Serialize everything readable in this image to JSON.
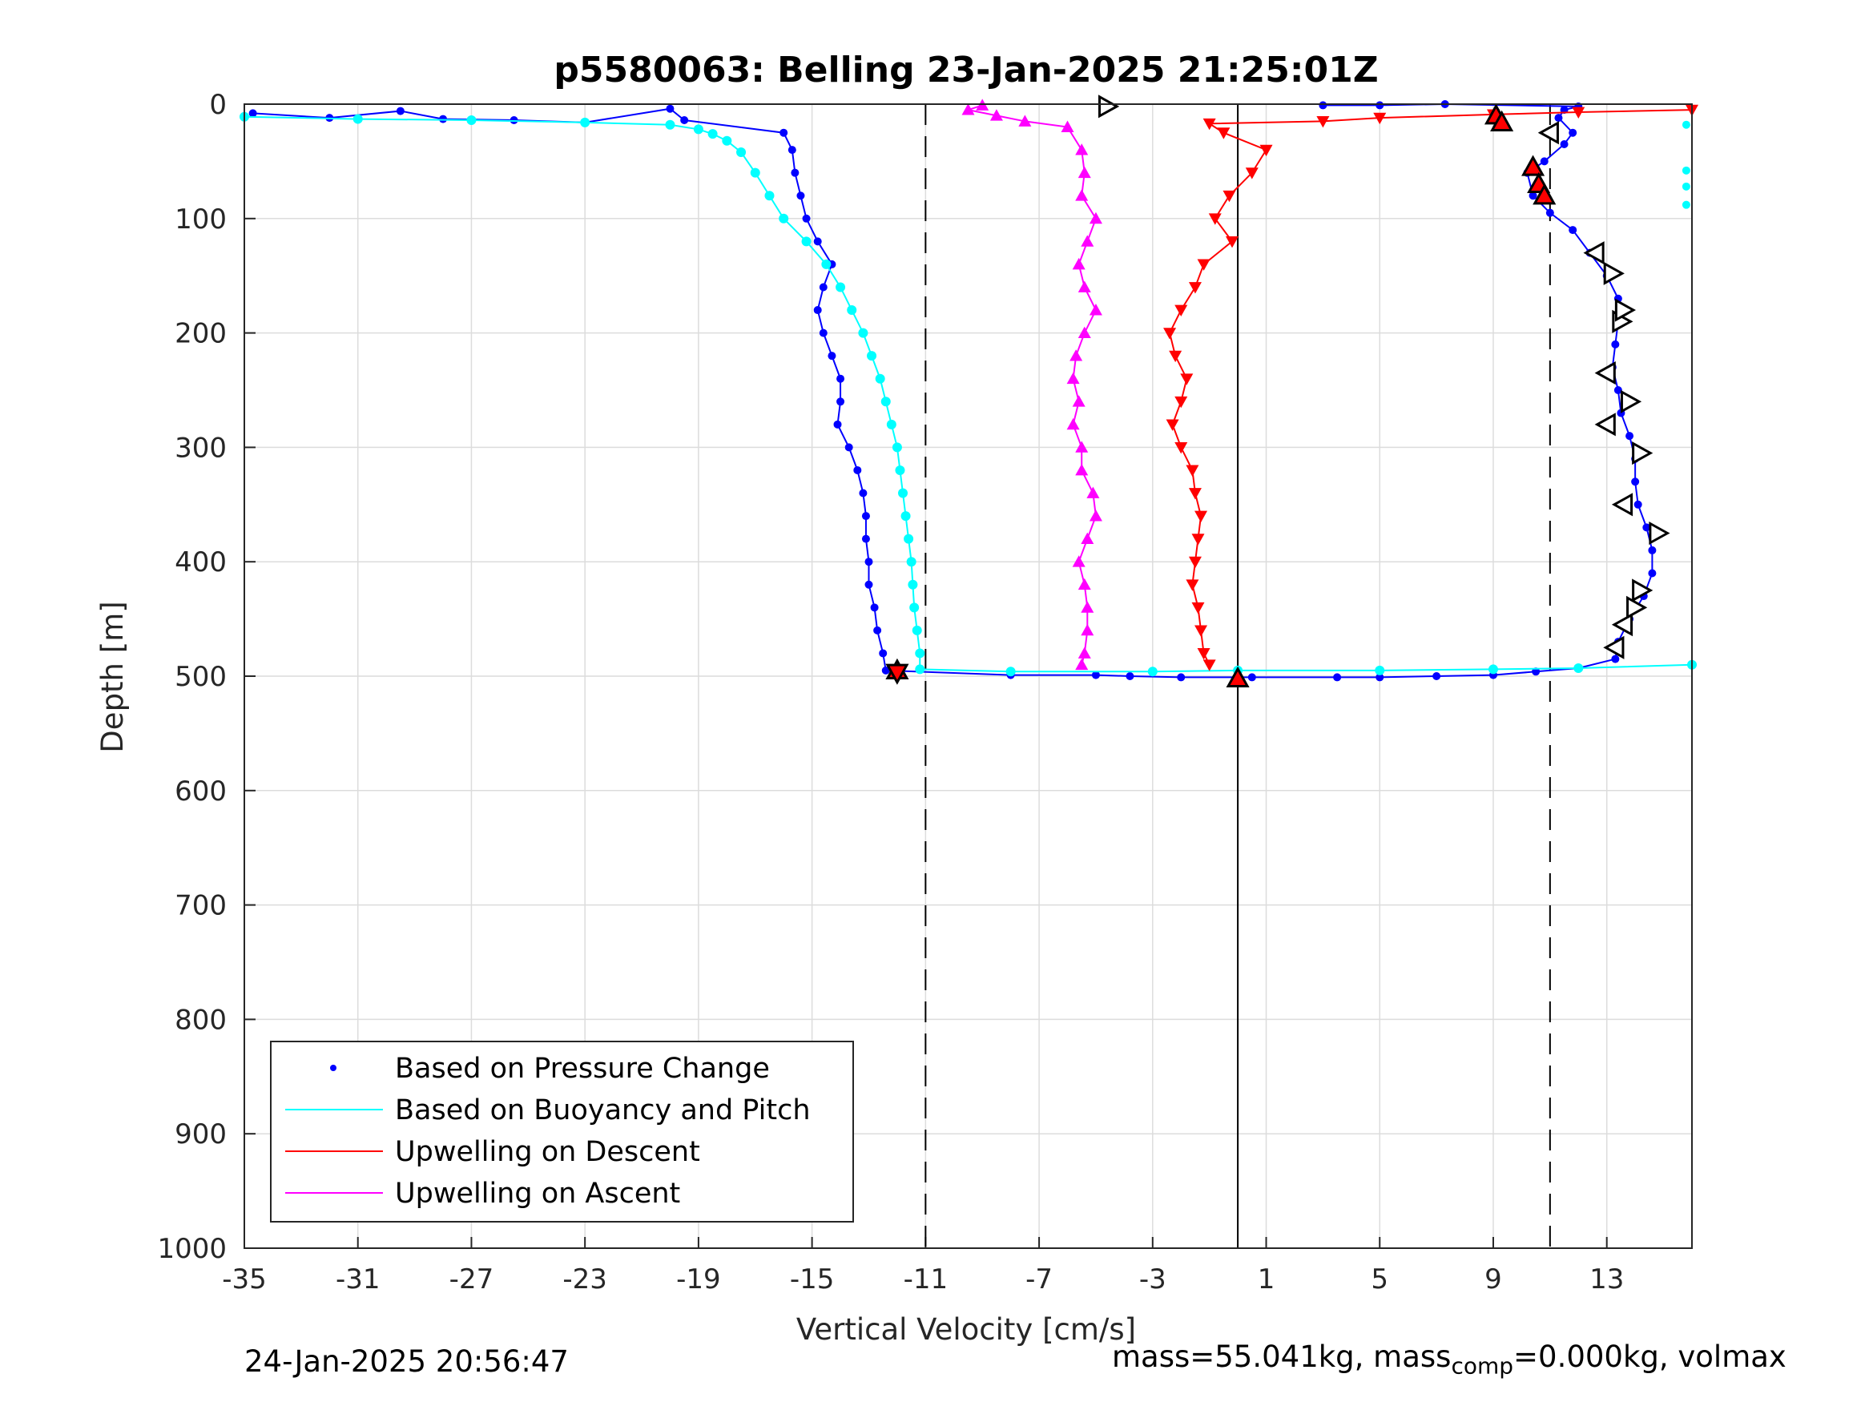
{
  "chart_data": {
    "type": "scatter",
    "title": "p5580063: Belling 23-Jan-2025 21:25:01Z",
    "xlabel": "Vertical Velocity [cm/s]",
    "ylabel": "Depth [m]",
    "xlim": [
      -35,
      16
    ],
    "ylim": [
      0,
      1000
    ],
    "y_reversed": true,
    "grid": true,
    "legend_position": "bottom-left",
    "xticks": [
      "-35",
      "-31",
      "-27",
      "-23",
      "-19",
      "-15",
      "-11",
      "-7",
      "-3",
      "1",
      "5",
      "9",
      "13"
    ],
    "yticks": [
      "0",
      "100",
      "200",
      "300",
      "400",
      "500",
      "600",
      "700",
      "800",
      "900",
      "1000"
    ],
    "reference_lines": [
      {
        "x": -11,
        "style": "dashed"
      },
      {
        "x": 11,
        "style": "dashed"
      },
      {
        "x": 0,
        "style": "solid"
      }
    ],
    "series": [
      {
        "name": "Based on Pressure Change",
        "color": "#0000ff",
        "marker": "dot",
        "points": [
          [
            -34.7,
            8
          ],
          [
            -32,
            12
          ],
          [
            -29.5,
            6
          ],
          [
            -28,
            13
          ],
          [
            -25.5,
            14
          ],
          [
            -23,
            16
          ],
          [
            -20,
            4
          ],
          [
            -19.5,
            14
          ],
          [
            -16,
            25
          ],
          [
            -15.7,
            40
          ],
          [
            -15.6,
            60
          ],
          [
            -15.4,
            80
          ],
          [
            -15.2,
            100
          ],
          [
            -14.8,
            120
          ],
          [
            -14.3,
            140
          ],
          [
            -14.6,
            160
          ],
          [
            -14.8,
            180
          ],
          [
            -14.6,
            200
          ],
          [
            -14.3,
            220
          ],
          [
            -14,
            240
          ],
          [
            -14,
            260
          ],
          [
            -14.1,
            280
          ],
          [
            -13.7,
            300
          ],
          [
            -13.4,
            320
          ],
          [
            -13.2,
            340
          ],
          [
            -13.1,
            360
          ],
          [
            -13.1,
            380
          ],
          [
            -13,
            400
          ],
          [
            -13,
            420
          ],
          [
            -12.8,
            440
          ],
          [
            -12.7,
            460
          ],
          [
            -12.5,
            480
          ],
          [
            -12.4,
            495
          ],
          [
            -8,
            499
          ],
          [
            -5,
            499
          ],
          [
            -3.8,
            500
          ],
          [
            -2,
            501
          ],
          [
            0.5,
            501
          ],
          [
            3.5,
            501
          ],
          [
            5,
            501
          ],
          [
            7,
            500
          ],
          [
            9,
            499
          ],
          [
            10.5,
            496
          ],
          [
            12,
            493
          ],
          [
            13.3,
            485
          ],
          [
            13.4,
            470
          ],
          [
            13.8,
            450
          ],
          [
            14.3,
            430
          ],
          [
            14.6,
            410
          ],
          [
            14.6,
            390
          ],
          [
            14.4,
            370
          ],
          [
            14.1,
            350
          ],
          [
            14,
            330
          ],
          [
            14,
            310
          ],
          [
            13.8,
            290
          ],
          [
            13.5,
            270
          ],
          [
            13.4,
            250
          ],
          [
            13.2,
            230
          ],
          [
            13.3,
            210
          ],
          [
            13.4,
            190
          ],
          [
            13.4,
            170
          ],
          [
            13,
            150
          ],
          [
            12.4,
            130
          ],
          [
            11.8,
            110
          ],
          [
            11,
            95
          ],
          [
            10.4,
            80
          ],
          [
            10.2,
            60
          ],
          [
            10.8,
            50
          ],
          [
            11.5,
            35
          ],
          [
            11.8,
            25
          ],
          [
            11.3,
            12
          ],
          [
            11.5,
            5
          ],
          [
            12,
            2
          ],
          [
            7.3,
            0
          ],
          [
            5,
            1
          ],
          [
            3,
            1
          ]
        ]
      },
      {
        "name": "Based on Buoyancy and Pitch",
        "color": "#00ffff",
        "marker": "line+dot",
        "points": [
          [
            -35,
            11
          ],
          [
            -31,
            13
          ],
          [
            -27,
            14
          ],
          [
            -23,
            16
          ],
          [
            -20,
            18
          ],
          [
            -19,
            22
          ],
          [
            -18.5,
            26
          ],
          [
            -18,
            32
          ],
          [
            -17.5,
            42
          ],
          [
            -17,
            60
          ],
          [
            -16.5,
            80
          ],
          [
            -16,
            100
          ],
          [
            -15.2,
            120
          ],
          [
            -14.5,
            140
          ],
          [
            -14,
            160
          ],
          [
            -13.6,
            180
          ],
          [
            -13.2,
            200
          ],
          [
            -12.9,
            220
          ],
          [
            -12.6,
            240
          ],
          [
            -12.4,
            260
          ],
          [
            -12.2,
            280
          ],
          [
            -12,
            300
          ],
          [
            -11.9,
            320
          ],
          [
            -11.8,
            340
          ],
          [
            -11.7,
            360
          ],
          [
            -11.6,
            380
          ],
          [
            -11.5,
            400
          ],
          [
            -11.45,
            420
          ],
          [
            -11.4,
            440
          ],
          [
            -11.3,
            460
          ],
          [
            -11.2,
            480
          ],
          [
            -11.2,
            494
          ],
          [
            -8,
            496
          ],
          [
            -3,
            496
          ],
          [
            0,
            495
          ],
          [
            5,
            495
          ],
          [
            9,
            494
          ],
          [
            12,
            493
          ],
          [
            16,
            490
          ]
        ],
        "extra_points": [
          [
            15.8,
            18
          ],
          [
            15.8,
            58
          ],
          [
            15.8,
            72
          ],
          [
            15.8,
            88
          ]
        ]
      },
      {
        "name": "Upwelling on Descent",
        "color": "#ff0000",
        "marker": "triangle-down",
        "points": [
          [
            16,
            5
          ],
          [
            12,
            7
          ],
          [
            9,
            9
          ],
          [
            5,
            12
          ],
          [
            3,
            15
          ],
          [
            -1,
            17
          ],
          [
            -0.5,
            25
          ],
          [
            1,
            40
          ],
          [
            0.5,
            60
          ],
          [
            -0.3,
            80
          ],
          [
            -0.8,
            100
          ],
          [
            -0.2,
            120
          ],
          [
            -1.2,
            140
          ],
          [
            -1.5,
            160
          ],
          [
            -2,
            180
          ],
          [
            -2.4,
            200
          ],
          [
            -2.2,
            220
          ],
          [
            -1.8,
            240
          ],
          [
            -2,
            260
          ],
          [
            -2.3,
            280
          ],
          [
            -2,
            300
          ],
          [
            -1.6,
            320
          ],
          [
            -1.5,
            340
          ],
          [
            -1.3,
            360
          ],
          [
            -1.4,
            380
          ],
          [
            -1.5,
            400
          ],
          [
            -1.6,
            420
          ],
          [
            -1.4,
            440
          ],
          [
            -1.3,
            460
          ],
          [
            -1.2,
            480
          ],
          [
            -1,
            490
          ]
        ]
      },
      {
        "name": "Upwelling on Ascent",
        "color": "#ff00ff",
        "marker": "triangle-up",
        "points": [
          [
            -9,
            1
          ],
          [
            -9.5,
            5
          ],
          [
            -8.5,
            10
          ],
          [
            -7.5,
            15
          ],
          [
            -6,
            20
          ],
          [
            -5.5,
            40
          ],
          [
            -5.4,
            60
          ],
          [
            -5.5,
            80
          ],
          [
            -5,
            100
          ],
          [
            -5.3,
            120
          ],
          [
            -5.6,
            140
          ],
          [
            -5.4,
            160
          ],
          [
            -5,
            180
          ],
          [
            -5.4,
            200
          ],
          [
            -5.7,
            220
          ],
          [
            -5.8,
            240
          ],
          [
            -5.6,
            260
          ],
          [
            -5.8,
            280
          ],
          [
            -5.5,
            300
          ],
          [
            -5.5,
            320
          ],
          [
            -5.1,
            340
          ],
          [
            -5,
            360
          ],
          [
            -5.3,
            380
          ],
          [
            -5.6,
            400
          ],
          [
            -5.4,
            420
          ],
          [
            -5.3,
            440
          ],
          [
            -5.3,
            460
          ],
          [
            -5.4,
            480
          ],
          [
            -5.5,
            490
          ]
        ]
      }
    ],
    "markers": [
      {
        "shape": "triangle-right",
        "fill": "#ffffff",
        "points": [
          [
            -4.6,
            2
          ],
          [
            13.5,
            190
          ],
          [
            13.8,
            260
          ],
          [
            14.2,
            305
          ],
          [
            14.8,
            375
          ],
          [
            14.2,
            425
          ],
          [
            14,
            440
          ],
          [
            13.2,
            148
          ],
          [
            13.6,
            180
          ]
        ]
      },
      {
        "shape": "triangle-left",
        "fill": "#ffffff",
        "points": [
          [
            11,
            25
          ],
          [
            12.6,
            130
          ],
          [
            13,
            235
          ],
          [
            13,
            280
          ],
          [
            13.6,
            350
          ],
          [
            13.6,
            455
          ],
          [
            13.3,
            475
          ]
        ]
      },
      {
        "shape": "triangle-up",
        "fill": "#ff0000",
        "points": [
          [
            9.1,
            10
          ],
          [
            9.3,
            16
          ],
          [
            10.4,
            55
          ],
          [
            10.6,
            70
          ],
          [
            10.8,
            80
          ],
          [
            -12,
            495
          ],
          [
            0,
            502
          ]
        ]
      },
      {
        "shape": "triangle-down",
        "fill": "#ff0000",
        "points": [
          [
            -12,
            497
          ]
        ]
      }
    ],
    "legend": [
      {
        "label": "Based on Pressure Change",
        "color": "#0000ff",
        "style": "dot"
      },
      {
        "label": "Based on Buoyancy and Pitch",
        "color": "#00ffff",
        "style": "line"
      },
      {
        "label": "Upwelling on Descent",
        "color": "#ff0000",
        "style": "line"
      },
      {
        "label": "Upwelling on Ascent",
        "color": "#ff00ff",
        "style": "line"
      }
    ]
  },
  "footer": {
    "timestamp": "24-Jan-2025 20:56:47",
    "mass_text": "mass=55.041kg, mass",
    "mass_sub": "comp",
    "mass_rest": "=0.000kg, volmax"
  }
}
